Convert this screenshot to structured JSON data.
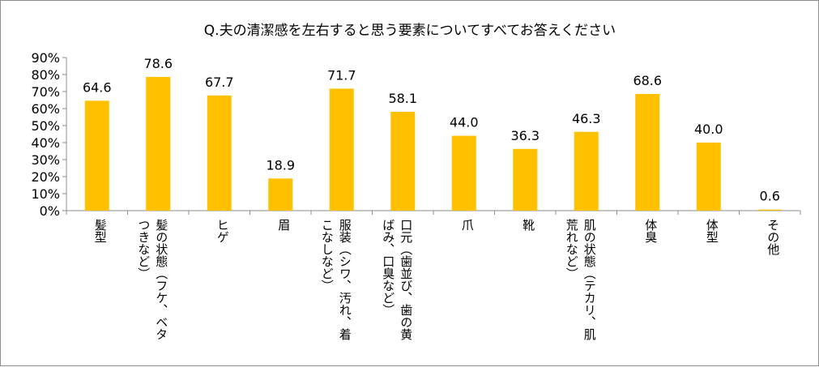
{
  "chart_data": {
    "type": "bar",
    "title": "Q.夫の清潔感を左右すると思う要素についてすべてお答えください",
    "categories": [
      [
        "髪型"
      ],
      [
        "髪の状態（フケ、ベタ",
        "つきなど）"
      ],
      [
        "ヒゲ"
      ],
      [
        "眉"
      ],
      [
        "服装（シワ、汚れ、着",
        "こなしなど）"
      ],
      [
        "口元（歯並び、歯の黄",
        "ばみ、口臭など）"
      ],
      [
        "爪"
      ],
      [
        "靴"
      ],
      [
        "肌の状態（テカリ、肌",
        "荒れなど）"
      ],
      [
        "体臭"
      ],
      [
        "体型"
      ],
      [
        "その他"
      ]
    ],
    "values": [
      64.6,
      78.6,
      67.7,
      18.9,
      71.7,
      58.1,
      44.0,
      36.3,
      46.3,
      68.6,
      40.0,
      0.6
    ],
    "data_labels": [
      "64.6",
      "78.6",
      "67.7",
      "18.9",
      "71.7",
      "58.1",
      "44.0",
      "36.3",
      "46.3",
      "68.6",
      "40.0",
      "0.6"
    ],
    "ylim": [
      0,
      90
    ],
    "yticks": [
      "0%",
      "10%",
      "20%",
      "30%",
      "40%",
      "50%",
      "60%",
      "70%",
      "80%",
      "90%"
    ],
    "bar_color": "#FFC000",
    "grid": false,
    "legend": "none"
  }
}
